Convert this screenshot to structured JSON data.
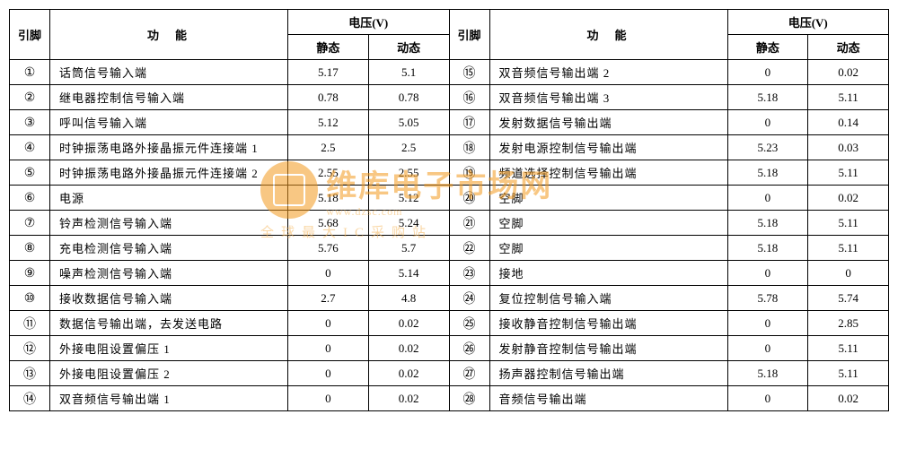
{
  "headers": {
    "pin": "引脚",
    "func": "功能",
    "volt": "电压(V)",
    "static": "静态",
    "dynamic": "动态"
  },
  "circled": [
    "①",
    "②",
    "③",
    "④",
    "⑤",
    "⑥",
    "⑦",
    "⑧",
    "⑨",
    "⑩",
    "⑪",
    "⑫",
    "⑬",
    "⑭",
    "⑮",
    "⑯",
    "⑰",
    "⑱",
    "⑲",
    "⑳",
    "㉑",
    "㉒",
    "㉓",
    "㉔",
    "㉕",
    "㉖",
    "㉗",
    "㉘"
  ],
  "left": [
    {
      "func": "话筒信号输入端",
      "s": "5.17",
      "d": "5.1"
    },
    {
      "func": "继电器控制信号输入端",
      "s": "0.78",
      "d": "0.78"
    },
    {
      "func": "呼叫信号输入端",
      "s": "5.12",
      "d": "5.05"
    },
    {
      "func": "时钟振荡电路外接晶振元件连接端 1",
      "s": "2.5",
      "d": "2.5"
    },
    {
      "func": "时钟振荡电路外接晶振元件连接端 2",
      "s": "2.55",
      "d": "2.55"
    },
    {
      "func": "电源",
      "s": "5.18",
      "d": "5.12"
    },
    {
      "func": "铃声检测信号输入端",
      "s": "5.68",
      "d": "5.24"
    },
    {
      "func": "充电检测信号输入端",
      "s": "5.76",
      "d": "5.7"
    },
    {
      "func": "噪声检测信号输入端",
      "s": "0",
      "d": "5.14"
    },
    {
      "func": "接收数据信号输入端",
      "s": "2.7",
      "d": "4.8"
    },
    {
      "func": "数据信号输出端，去发送电路",
      "s": "0",
      "d": "0.02"
    },
    {
      "func": "外接电阻设置偏压 1",
      "s": "0",
      "d": "0.02"
    },
    {
      "func": "外接电阻设置偏压 2",
      "s": "0",
      "d": "0.02"
    },
    {
      "func": "双音频信号输出端 1",
      "s": "0",
      "d": "0.02"
    }
  ],
  "right": [
    {
      "func": "双音频信号输出端 2",
      "s": "0",
      "d": "0.02"
    },
    {
      "func": "双音频信号输出端 3",
      "s": "5.18",
      "d": "5.11"
    },
    {
      "func": "发射数据信号输出端",
      "s": "0",
      "d": "0.14"
    },
    {
      "func": "发射电源控制信号输出端",
      "s": "5.23",
      "d": "0.03"
    },
    {
      "func": "频道选择控制信号输出端",
      "s": "5.18",
      "d": "5.11"
    },
    {
      "func": "空脚",
      "s": "0",
      "d": "0.02"
    },
    {
      "func": "空脚",
      "s": "5.18",
      "d": "5.11"
    },
    {
      "func": "空脚",
      "s": "5.18",
      "d": "5.11"
    },
    {
      "func": "接地",
      "s": "0",
      "d": "0"
    },
    {
      "func": "复位控制信号输入端",
      "s": "5.78",
      "d": "5.74"
    },
    {
      "func": "接收静音控制信号输出端",
      "s": "0",
      "d": "2.85"
    },
    {
      "func": "发射静音控制信号输出端",
      "s": "0",
      "d": "5.11"
    },
    {
      "func": "扬声器控制信号输出端",
      "s": "5.18",
      "d": "5.11"
    },
    {
      "func": "音频信号输出端",
      "s": "0",
      "d": "0.02"
    }
  ],
  "watermark": {
    "main": "维库电子市场网",
    "sub": "www.dzsc.com",
    "tag": "全球最大IC采购站"
  },
  "colors": {
    "border": "#000000",
    "background": "#ffffff",
    "watermark": "#f39b1f",
    "watermark_light": "#f5b65a"
  }
}
